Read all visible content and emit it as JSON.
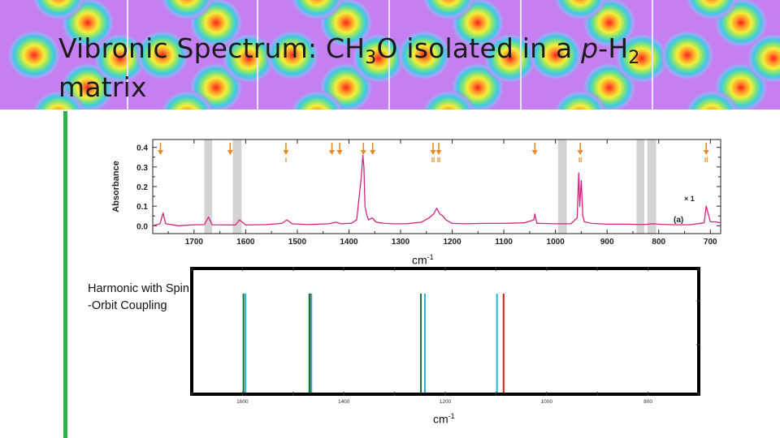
{
  "slide": {
    "title_pre": "Vibronic Spectrum: CH",
    "title_sub1": "3",
    "title_mid": "O isolated in a ",
    "title_italic": "p",
    "title_dash": "-H",
    "title_sub2": "2",
    "title_line2": "matrix"
  },
  "calc_label": "Harmonic with Spin\n-Orbit Coupling",
  "colors": {
    "spectrum": "#d6237e",
    "arrow": "#e88a1f",
    "band": "#d3d3d3",
    "accent": "#2fb24a",
    "calc_dark_green": "#1e6e3a",
    "calc_cyan": "#29b4d8",
    "calc_red": "#d41c1c"
  },
  "chart_data": [
    {
      "type": "line",
      "name": "experimental-absorbance",
      "ylabel": "Absorbance",
      "xlabel": "cm",
      "xlabel_sup": "-1",
      "xlim": [
        1780,
        680
      ],
      "ylim": [
        -0.04,
        0.44
      ],
      "xticks": [
        "1700",
        "1600",
        "1500",
        "1400",
        "1300",
        "1200",
        "1100",
        "1000",
        "900",
        "800",
        "700"
      ],
      "xtick_values": [
        1700,
        1600,
        1500,
        1400,
        1300,
        1200,
        1100,
        1000,
        900,
        800,
        700
      ],
      "yticks": [
        "0.0",
        "0.1",
        "0.2",
        "0.3",
        "0.4"
      ],
      "ytick_values": [
        0.0,
        0.1,
        0.2,
        0.3,
        0.4
      ],
      "annotation_scale": "× 1",
      "annotation_panel": "(a)",
      "shaded_regions": [
        [
          1680,
          1665
        ],
        [
          1625,
          1608
        ],
        [
          995,
          978
        ],
        [
          843,
          828
        ],
        [
          822,
          805
        ]
      ],
      "arrows": [
        {
          "x": 1765,
          "mark": ""
        },
        {
          "x": 1630,
          "mark": ""
        },
        {
          "x": 1522,
          "mark": "I"
        },
        {
          "x": 1433,
          "mark": ""
        },
        {
          "x": 1418,
          "mark": ""
        },
        {
          "x": 1372,
          "mark": ""
        },
        {
          "x": 1354,
          "mark": ""
        },
        {
          "x": 1237,
          "mark": "II"
        },
        {
          "x": 1226,
          "mark": "II"
        },
        {
          "x": 1040,
          "mark": ""
        },
        {
          "x": 952,
          "mark": "II"
        },
        {
          "x": 708,
          "mark": "II"
        }
      ],
      "series": [
        {
          "name": "spectrum",
          "x": [
            1780,
            1766,
            1760,
            1755,
            1730,
            1700,
            1680,
            1672,
            1665,
            1620,
            1612,
            1600,
            1560,
            1530,
            1520,
            1510,
            1480,
            1440,
            1425,
            1415,
            1395,
            1385,
            1376,
            1373,
            1371,
            1369,
            1366,
            1362,
            1355,
            1348,
            1340,
            1330,
            1315,
            1290,
            1260,
            1245,
            1236,
            1230,
            1224,
            1218,
            1212,
            1200,
            1175,
            1140,
            1100,
            1060,
            1042,
            1040,
            1036,
            1030,
            1000,
            970,
            958,
            955,
            953,
            950,
            947,
            944,
            930,
            900,
            860,
            830,
            810,
            795,
            780,
            760,
            740,
            712,
            708,
            700,
            690,
            680
          ],
          "y": [
            0.0,
            0.01,
            0.065,
            0.01,
            0.0,
            0.005,
            0.006,
            0.045,
            0.005,
            0.004,
            0.03,
            0.004,
            0.006,
            0.012,
            0.03,
            0.01,
            0.006,
            0.01,
            0.018,
            0.01,
            0.013,
            0.03,
            0.25,
            0.36,
            0.3,
            0.1,
            0.06,
            0.03,
            0.04,
            0.02,
            0.015,
            0.012,
            0.01,
            0.01,
            0.018,
            0.04,
            0.06,
            0.09,
            0.06,
            0.05,
            0.03,
            0.012,
            0.01,
            0.012,
            0.012,
            0.015,
            0.03,
            0.06,
            0.012,
            0.012,
            0.01,
            0.01,
            0.04,
            0.27,
            0.1,
            0.23,
            0.05,
            0.02,
            0.012,
            0.008,
            0.008,
            0.006,
            0.01,
            0.007,
            0.006,
            0.005,
            0.005,
            0.015,
            0.1,
            0.02,
            0.02,
            0.015
          ]
        }
      ]
    },
    {
      "type": "bar",
      "name": "calculated-harmonic-soc",
      "xlabel": "cm",
      "xlabel_sup": "-1",
      "xlim": [
        1700,
        700
      ],
      "xticks": [
        "1600",
        "1400",
        "1200",
        "1000",
        "800"
      ],
      "xtick_values": [
        1600,
        1400,
        1200,
        1000,
        800
      ],
      "lines": [
        {
          "x": 1598,
          "series": "dark-green"
        },
        {
          "x": 1594,
          "series": "cyan"
        },
        {
          "x": 1468,
          "series": "dark-green"
        },
        {
          "x": 1466,
          "series": "red"
        },
        {
          "x": 1464,
          "series": "cyan"
        },
        {
          "x": 1248,
          "series": "dark-green"
        },
        {
          "x": 1240,
          "series": "cyan"
        },
        {
          "x": 1098,
          "series": "cyan"
        },
        {
          "x": 1085,
          "series": "red"
        }
      ]
    }
  ]
}
